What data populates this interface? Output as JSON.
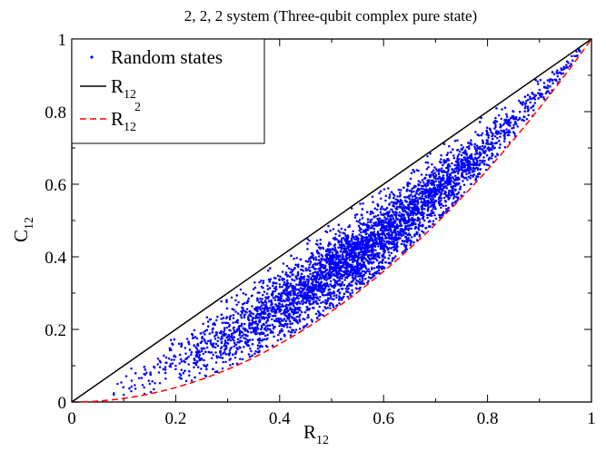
{
  "chart_data": {
    "type": "scatter",
    "title": "2, 2, 2 system (Three-qubit complex pure state)",
    "xlabel": "R",
    "xlabel_sub": "12",
    "ylabel": "C",
    "ylabel_sub": "12",
    "xlim": [
      0,
      1
    ],
    "ylim": [
      0,
      1
    ],
    "x_ticks": [
      "0",
      "0.2",
      "0.4",
      "0.6",
      "0.8",
      "1"
    ],
    "y_ticks": [
      "0",
      "0.2",
      "0.4",
      "0.6",
      "0.8",
      "1"
    ],
    "x_tick_values": [
      0,
      0.2,
      0.4,
      0.6,
      0.8,
      1
    ],
    "y_tick_values": [
      0,
      0.2,
      0.4,
      0.6,
      0.8,
      1
    ],
    "grid": false,
    "legend_position": "top-left",
    "colors": {
      "points": "#0000ff",
      "line": "#000000",
      "dashed": "#ff0000"
    },
    "series": [
      {
        "name": "Random states",
        "name_sub": "",
        "name_sup": "",
        "kind": "scatter",
        "description_bounds": "points between C = R^2 (lower) and C = R (upper)",
        "sample_points": [
          [
            0.1,
            0.02
          ],
          [
            0.15,
            0.05
          ],
          [
            0.2,
            0.1
          ],
          [
            0.25,
            0.14
          ],
          [
            0.3,
            0.18
          ],
          [
            0.35,
            0.22
          ],
          [
            0.4,
            0.27
          ],
          [
            0.45,
            0.32
          ],
          [
            0.5,
            0.38
          ],
          [
            0.55,
            0.43
          ],
          [
            0.6,
            0.5
          ],
          [
            0.65,
            0.55
          ],
          [
            0.7,
            0.62
          ],
          [
            0.75,
            0.68
          ],
          [
            0.8,
            0.74
          ],
          [
            0.85,
            0.8
          ],
          [
            0.9,
            0.86
          ],
          [
            0.95,
            0.92
          ]
        ]
      },
      {
        "name": "R",
        "name_sub": "12",
        "name_sup": "",
        "kind": "line",
        "x": [
          0,
          1
        ],
        "y": [
          0,
          1
        ]
      },
      {
        "name": "R",
        "name_sub": "12",
        "name_sup": "2",
        "kind": "dashed-line",
        "function": "x^2"
      }
    ]
  }
}
